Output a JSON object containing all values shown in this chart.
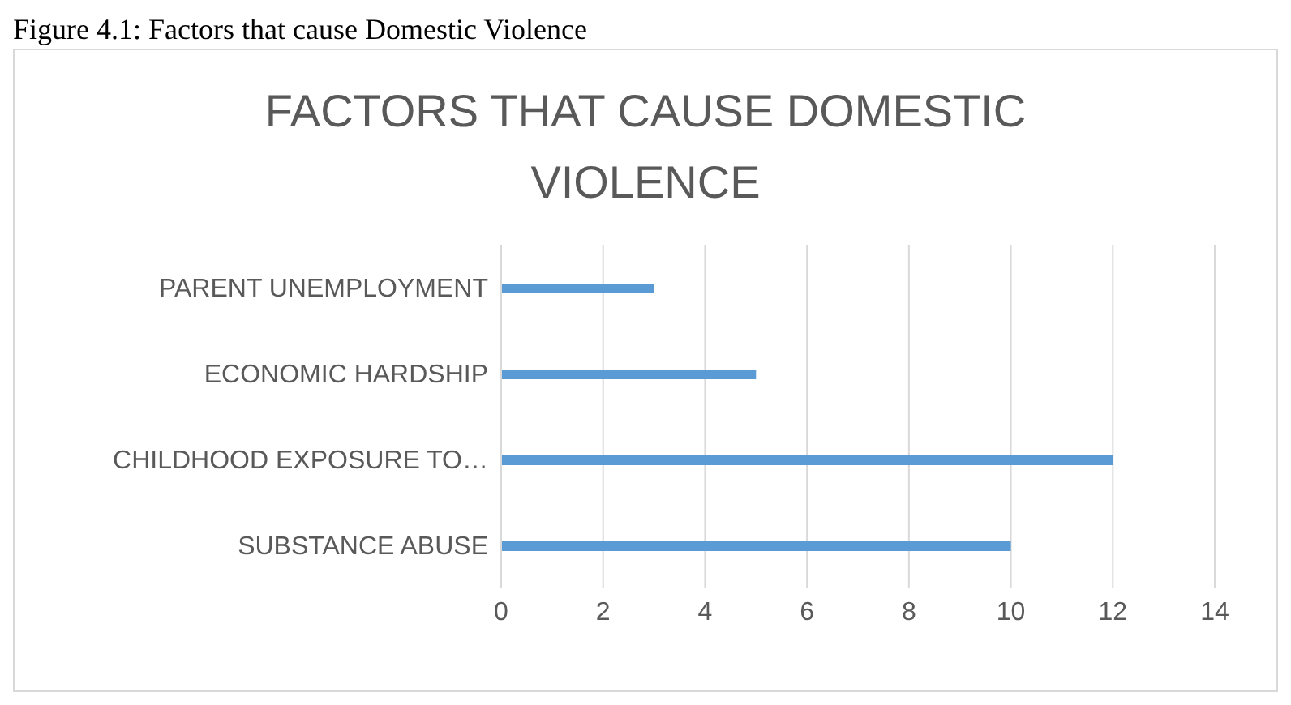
{
  "chart_data": {
    "type": "bar",
    "orientation": "horizontal",
    "title": "FACTORS THAT CAUSE DOMESTIC VIOLENCE",
    "annotations": [
      "Figure 4.1: Factors that cause Domestic Violence"
    ],
    "categories": [
      "PARENT UNEMPLOYMENT",
      "ECONOMIC HARDSHIP",
      "CHILDHOOD EXPOSURE TO…",
      "SUBSTANCE ABUSE"
    ],
    "values": [
      3,
      5,
      12,
      10
    ],
    "color": "#5b9bd5",
    "xlim": [
      0,
      14
    ],
    "xticks": [
      0,
      2,
      4,
      6,
      8,
      10,
      12,
      14
    ],
    "grid": "x"
  }
}
